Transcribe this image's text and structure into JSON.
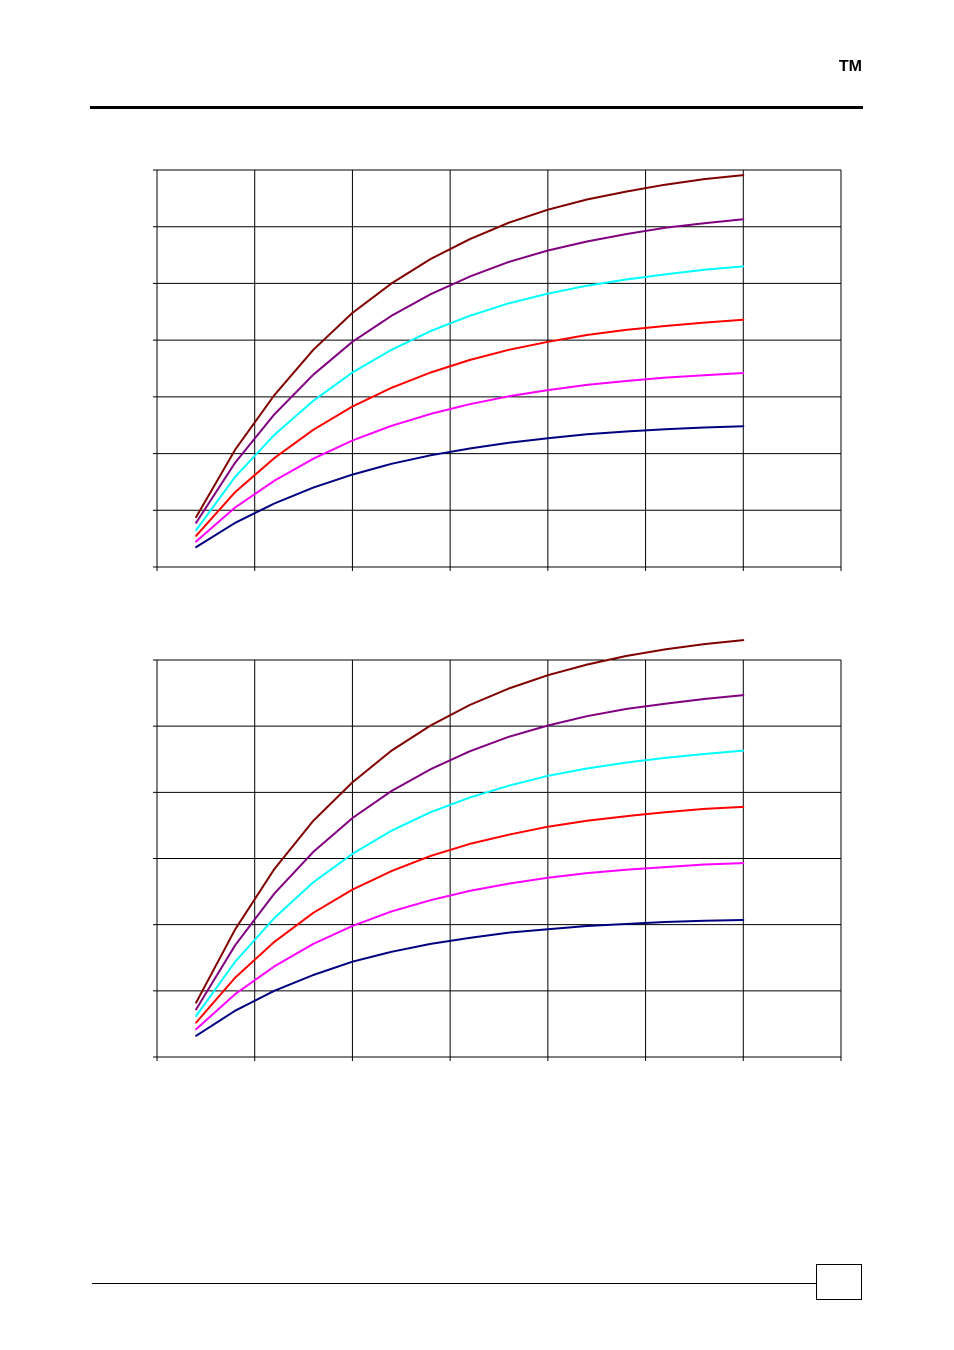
{
  "header": {
    "tm": "TM"
  },
  "footer": {
    "page_number": ""
  },
  "chart_data": [
    {
      "type": "line",
      "title": "",
      "xlabel": "",
      "ylabel": "",
      "xlim": [
        0,
        7
      ],
      "ylim": [
        0,
        7
      ],
      "grid": true,
      "legend": "none",
      "x": [
        0.4,
        0.8,
        1.2,
        1.6,
        2.0,
        2.4,
        2.8,
        3.2,
        3.6,
        4.0,
        4.4,
        4.8,
        5.2,
        5.6,
        6.0
      ],
      "series": [
        {
          "color": "#000080",
          "values": [
            0.35,
            0.78,
            1.12,
            1.4,
            1.63,
            1.82,
            1.97,
            2.09,
            2.19,
            2.27,
            2.34,
            2.39,
            2.43,
            2.46,
            2.48
          ]
        },
        {
          "color": "#FF00FF",
          "values": [
            0.45,
            1.05,
            1.52,
            1.91,
            2.23,
            2.49,
            2.7,
            2.87,
            3.01,
            3.12,
            3.21,
            3.28,
            3.34,
            3.38,
            3.42
          ]
        },
        {
          "color": "#FF0000",
          "values": [
            0.55,
            1.32,
            1.92,
            2.42,
            2.83,
            3.16,
            3.43,
            3.65,
            3.83,
            3.97,
            4.09,
            4.18,
            4.25,
            4.31,
            4.36
          ]
        },
        {
          "color": "#00FFFF",
          "values": [
            0.65,
            1.59,
            2.33,
            2.93,
            3.43,
            3.83,
            4.16,
            4.43,
            4.65,
            4.82,
            4.96,
            5.07,
            5.16,
            5.24,
            5.3
          ]
        },
        {
          "color": "#800080",
          "values": [
            0.78,
            1.84,
            2.69,
            3.39,
            3.97,
            4.43,
            4.81,
            5.12,
            5.38,
            5.58,
            5.74,
            5.87,
            5.98,
            6.06,
            6.13
          ]
        },
        {
          "color": "#800000",
          "values": [
            0.88,
            2.07,
            3.03,
            3.83,
            4.48,
            5.0,
            5.43,
            5.78,
            6.07,
            6.3,
            6.48,
            6.62,
            6.74,
            6.84,
            6.91
          ]
        }
      ]
    },
    {
      "type": "line",
      "title": "",
      "xlabel": "",
      "ylabel": "",
      "xlim": [
        0,
        7
      ],
      "ylim": [
        0,
        6
      ],
      "grid": true,
      "legend": "none",
      "x": [
        0.4,
        0.8,
        1.2,
        1.6,
        2.0,
        2.4,
        2.8,
        3.2,
        3.6,
        4.0,
        4.4,
        4.8,
        5.2,
        5.6,
        6.0
      ],
      "series": [
        {
          "color": "#000080",
          "values": [
            0.32,
            0.7,
            1.0,
            1.24,
            1.44,
            1.59,
            1.71,
            1.8,
            1.88,
            1.93,
            1.98,
            2.01,
            2.04,
            2.06,
            2.07
          ]
        },
        {
          "color": "#FF00FF",
          "values": [
            0.42,
            0.95,
            1.37,
            1.71,
            1.98,
            2.2,
            2.37,
            2.51,
            2.62,
            2.71,
            2.78,
            2.83,
            2.87,
            2.91,
            2.93
          ]
        },
        {
          "color": "#FF0000",
          "values": [
            0.52,
            1.2,
            1.74,
            2.18,
            2.53,
            2.81,
            3.04,
            3.22,
            3.36,
            3.48,
            3.57,
            3.64,
            3.7,
            3.75,
            3.78
          ]
        },
        {
          "color": "#00FFFF",
          "values": [
            0.62,
            1.44,
            2.1,
            2.64,
            3.07,
            3.42,
            3.7,
            3.92,
            4.1,
            4.25,
            4.36,
            4.45,
            4.52,
            4.58,
            4.63
          ]
        },
        {
          "color": "#800080",
          "values": [
            0.72,
            1.69,
            2.47,
            3.1,
            3.61,
            4.02,
            4.35,
            4.62,
            4.84,
            5.01,
            5.15,
            5.26,
            5.34,
            5.41,
            5.47
          ]
        },
        {
          "color": "#800000",
          "values": [
            0.82,
            1.93,
            2.84,
            3.57,
            4.15,
            4.63,
            5.01,
            5.32,
            5.57,
            5.77,
            5.93,
            6.06,
            6.16,
            6.24,
            6.3
          ]
        }
      ]
    }
  ]
}
